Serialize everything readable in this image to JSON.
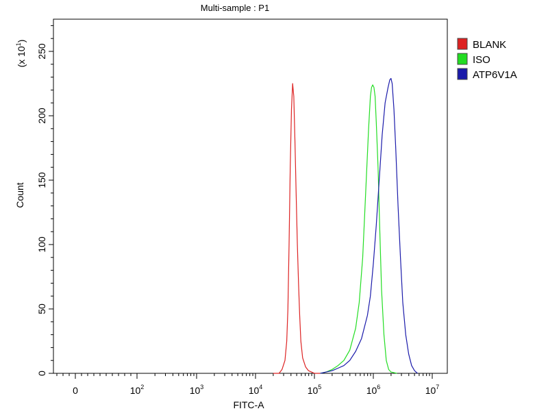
{
  "chart_data": {
    "type": "line",
    "title": "Multi-sample : P1",
    "xlabel": "FITC-A",
    "ylabel": "Count",
    "y_multiplier": "(x 10",
    "y_multiplier_exp": "1",
    "x_scale": "biexponential",
    "ylim": [
      0,
      275
    ],
    "y_ticks": [
      0,
      50,
      100,
      150,
      200,
      250
    ],
    "x_ticks": [
      {
        "base": "0",
        "exp": ""
      },
      {
        "base": "10",
        "exp": "2"
      },
      {
        "base": "10",
        "exp": "3"
      },
      {
        "base": "10",
        "exp": "4"
      },
      {
        "base": "10",
        "exp": "5"
      },
      {
        "base": "10",
        "exp": "6"
      },
      {
        "base": "10",
        "exp": "7"
      }
    ],
    "grid": false,
    "legend_position": "right",
    "series": [
      {
        "name": "BLANK",
        "color": "#dd2222",
        "x": [
          4.3,
          4.4,
          4.45,
          4.5,
          4.53,
          4.55,
          4.57,
          4.59,
          4.61,
          4.63,
          4.65,
          4.67,
          4.69,
          4.71,
          4.73,
          4.75,
          4.77,
          4.8,
          4.85,
          4.9,
          4.95,
          5.0,
          5.1
        ],
        "y": [
          0,
          0,
          3,
          10,
          25,
          50,
          100,
          160,
          205,
          225,
          215,
          180,
          140,
          100,
          70,
          45,
          25,
          12,
          5,
          2,
          1,
          0,
          0
        ]
      },
      {
        "name": "ISO",
        "color": "#22dd22",
        "x": [
          5.1,
          5.2,
          5.3,
          5.4,
          5.5,
          5.6,
          5.7,
          5.76,
          5.82,
          5.87,
          5.92,
          5.95,
          5.97,
          5.99,
          6.01,
          6.03,
          6.05,
          6.08,
          6.11,
          6.14,
          6.18,
          6.22,
          6.26,
          6.3,
          6.4
        ],
        "y": [
          0,
          1,
          3,
          6,
          10,
          18,
          35,
          55,
          90,
          140,
          190,
          215,
          222,
          224,
          222,
          215,
          195,
          160,
          110,
          65,
          30,
          10,
          3,
          1,
          0
        ]
      },
      {
        "name": "ATP6V1A",
        "color": "#1a1aaa",
        "x": [
          5.1,
          5.2,
          5.3,
          5.4,
          5.5,
          5.6,
          5.7,
          5.8,
          5.9,
          5.95,
          6.0,
          6.05,
          6.1,
          6.15,
          6.2,
          6.25,
          6.28,
          6.3,
          6.32,
          6.35,
          6.38,
          6.42,
          6.46,
          6.5,
          6.55,
          6.6,
          6.65,
          6.7,
          6.75
        ],
        "y": [
          0,
          1,
          2,
          4,
          6,
          10,
          17,
          27,
          45,
          60,
          85,
          115,
          150,
          185,
          210,
          222,
          228,
          229,
          225,
          205,
          175,
          130,
          90,
          55,
          30,
          15,
          6,
          2,
          0
        ]
      }
    ]
  }
}
